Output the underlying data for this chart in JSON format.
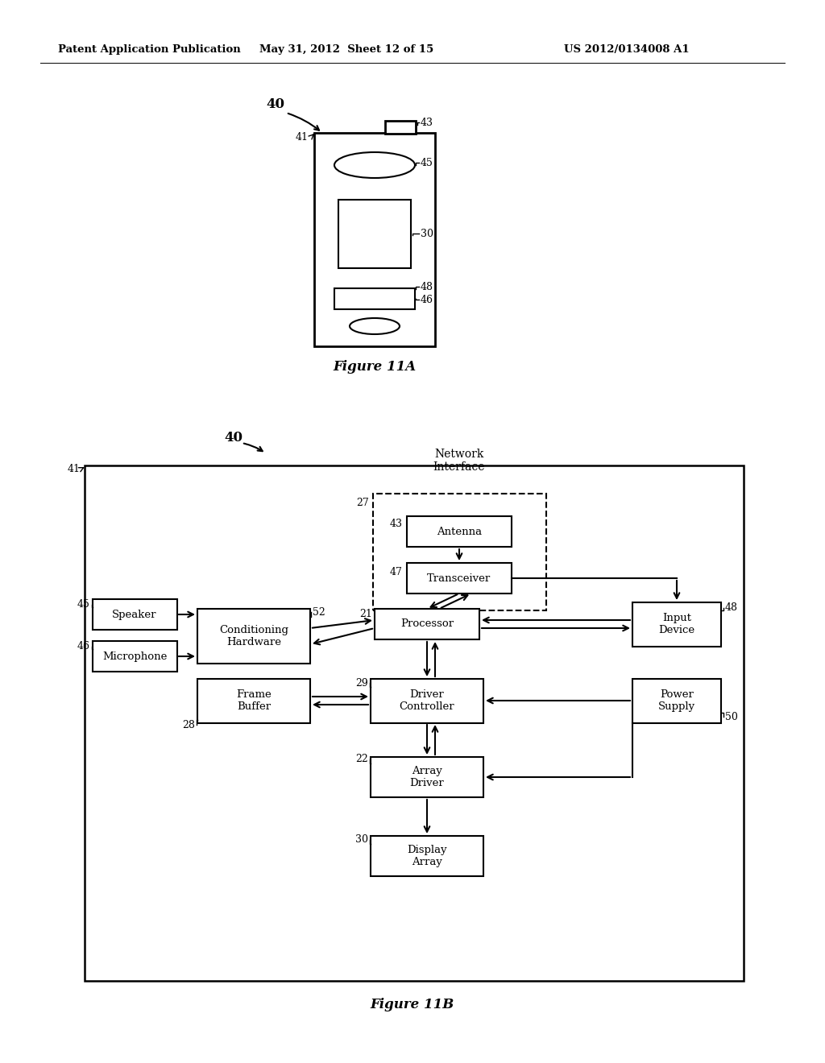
{
  "background_color": "#ffffff",
  "header_left": "Patent Application Publication",
  "header_mid": "May 31, 2012  Sheet 12 of 15",
  "header_right": "US 2012/0134008 A1",
  "fig11A_label": "Figure 11A",
  "fig11B_label": "Figure 11B",
  "fig11A": {
    "label_40": "40",
    "label_41": "41",
    "label_43": "43",
    "label_45": "45",
    "label_30": "30",
    "label_48": "48",
    "label_46": "46"
  },
  "fig11B": {
    "label_40": "40",
    "label_41": "41",
    "label_27": "27",
    "label_43": "43",
    "label_47": "47",
    "label_45": "45",
    "label_52": "52",
    "label_21": "21",
    "label_46": "46",
    "label_29": "29",
    "label_28": "28",
    "label_22": "22",
    "label_30": "30",
    "label_48": "48",
    "label_50": "50",
    "network_interface": "Network\nInterface",
    "antenna": "Antenna",
    "transceiver": "Transceiver",
    "processor": "Processor",
    "conditioning": "Conditioning\nHardware",
    "speaker": "Speaker",
    "microphone": "Microphone",
    "frame_buffer": "Frame\nBuffer",
    "driver_controller": "Driver\nController",
    "array_driver": "Array\nDriver",
    "display_array": "Display\nArray",
    "input_device": "Input\nDevice",
    "power_supply": "Power\nSupply"
  }
}
